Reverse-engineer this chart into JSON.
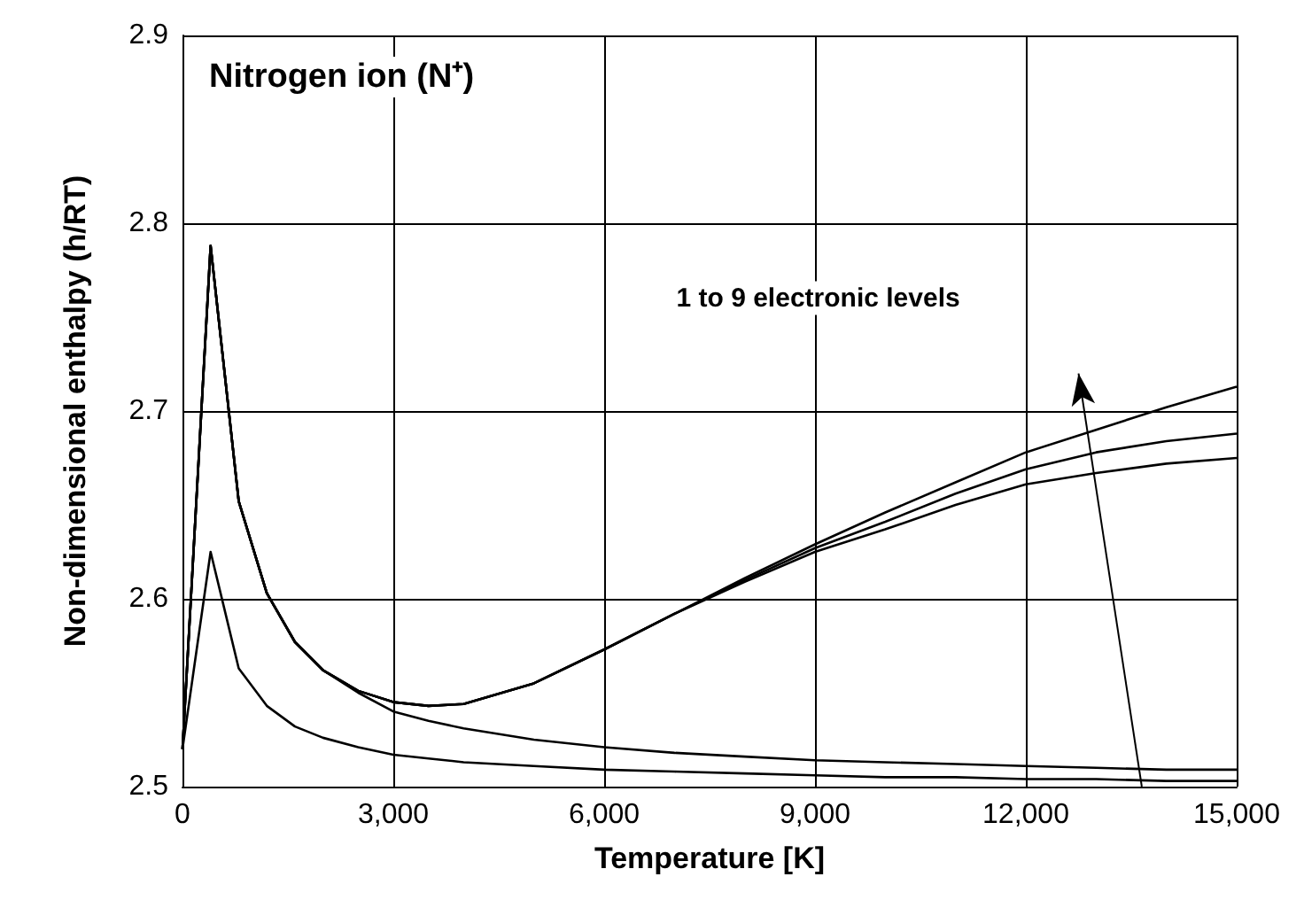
{
  "chart_data": {
    "type": "line",
    "title": "Nitrogen ion (N⁺)",
    "xlabel": "Temperature [K]",
    "ylabel": "Non-dimensional enthalpy (h/RT)",
    "x": [
      0,
      400,
      800,
      1200,
      1600,
      2000,
      2500,
      3000,
      3500,
      4000,
      5000,
      6000,
      7000,
      8000,
      9000,
      10000,
      11000,
      12000,
      13000,
      14000,
      15000
    ],
    "series": [
      {
        "color": "#000000",
        "values": [
          2.52,
          2.625,
          2.563,
          2.543,
          2.532,
          2.526,
          2.521,
          2.517,
          2.515,
          2.513,
          2.511,
          2.509,
          2.508,
          2.507,
          2.506,
          2.505,
          2.505,
          2.504,
          2.504,
          2.503,
          2.503
        ]
      },
      {
        "color": "#000000",
        "values": [
          2.52,
          2.788,
          2.652,
          2.603,
          2.577,
          2.562,
          2.55,
          2.54,
          2.535,
          2.531,
          2.525,
          2.521,
          2.518,
          2.516,
          2.514,
          2.513,
          2.512,
          2.511,
          2.51,
          2.509,
          2.509
        ]
      },
      {
        "color": "#000000",
        "values": [
          2.52,
          2.788,
          2.652,
          2.603,
          2.577,
          2.562,
          2.551,
          2.545,
          2.543,
          2.544,
          2.555,
          2.573,
          2.592,
          2.611,
          2.629,
          2.646,
          2.662,
          2.678,
          2.69,
          2.702,
          2.713
        ]
      },
      {
        "color": "#000000",
        "values": [
          2.52,
          2.788,
          2.652,
          2.603,
          2.577,
          2.562,
          2.551,
          2.545,
          2.543,
          2.544,
          2.555,
          2.573,
          2.592,
          2.61,
          2.627,
          2.641,
          2.656,
          2.669,
          2.678,
          2.684,
          2.688
        ]
      },
      {
        "color": "#000000",
        "values": [
          2.52,
          2.788,
          2.652,
          2.603,
          2.577,
          2.562,
          2.551,
          2.545,
          2.543,
          2.544,
          2.555,
          2.573,
          2.592,
          2.609,
          2.625,
          2.637,
          2.65,
          2.661,
          2.667,
          2.672,
          2.675
        ]
      }
    ],
    "annotations": [
      "1 to 9 electronic levels"
    ],
    "xlim": [
      0,
      15000
    ],
    "ylim": [
      2.5,
      2.9
    ],
    "xticks": [
      0,
      {
        "value": 3000,
        "label": "3,000"
      },
      {
        "value": 6000,
        "label": "6,000"
      },
      {
        "value": 9000,
        "label": "9,000"
      },
      {
        "value": 12000,
        "label": "12,000"
      },
      {
        "value": 15000,
        "label": "15,000"
      }
    ],
    "yticks": [
      2.5,
      2.6,
      2.7,
      2.8,
      2.9
    ],
    "grid": true,
    "marker": "none",
    "line_style": "solid"
  }
}
